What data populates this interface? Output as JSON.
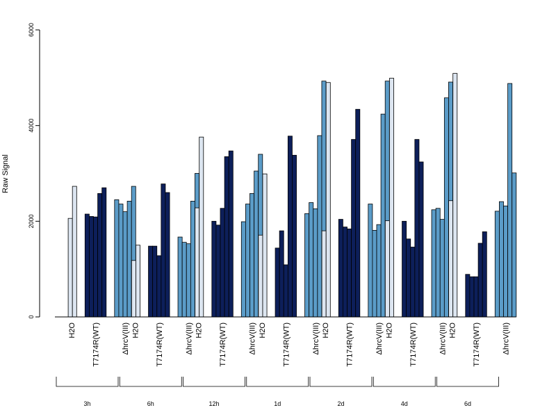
{
  "chart_data": {
    "type": "bar",
    "ylabel": "Raw Signal",
    "ylim": [
      0,
      6000
    ],
    "yticks": [
      0,
      2000,
      4000,
      6000
    ],
    "grid": false,
    "legend": "none",
    "categories": [
      "H2O",
      "T7174R(WT)",
      "ΔhrcV(III)"
    ],
    "groups": [
      {
        "label": "3h",
        "series": [
          [
            0,
            2060,
            2730
          ],
          [
            2150,
            2100,
            2090,
            2580,
            2700
          ],
          [
            2450,
            2360,
            2200,
            2420,
            2730
          ]
        ]
      },
      {
        "label": "6h",
        "series": [
          [
            0,
            1180,
            1500
          ],
          [
            1480,
            1480,
            1280,
            2780,
            2600
          ],
          [
            1670,
            1560,
            1530,
            2420,
            3000
          ]
        ]
      },
      {
        "label": "12h",
        "series": [
          [
            0,
            2280,
            3760
          ],
          [
            2000,
            1920,
            2270,
            3350,
            3470
          ],
          [
            1990,
            2360,
            2580,
            3050,
            3400
          ]
        ]
      },
      {
        "label": "1d",
        "series": [
          [
            0,
            1710,
            2990
          ],
          [
            1440,
            1800,
            1090,
            3780,
            3380
          ],
          [
            2160,
            2390,
            2260,
            3790,
            4930
          ]
        ]
      },
      {
        "label": "2d",
        "series": [
          [
            0,
            1800,
            4900
          ],
          [
            2040,
            1880,
            1840,
            3710,
            4340
          ],
          [
            2360,
            1810,
            1930,
            4240,
            4930
          ]
        ]
      },
      {
        "label": "4d",
        "series": [
          [
            0,
            2010,
            4990
          ],
          [
            2000,
            1630,
            1460,
            3710,
            3240
          ],
          [
            2240,
            2270,
            2040,
            4580,
            4910
          ]
        ]
      },
      {
        "label": "6d",
        "series": [
          [
            0,
            2430,
            5090
          ],
          [
            890,
            840,
            840,
            1540,
            1780
          ],
          [
            2210,
            2410,
            2320,
            4880,
            3010
          ]
        ]
      }
    ]
  },
  "colors": {
    "H2O": "#dde6f1",
    "T7174R(WT)": "#0d1f5a",
    "ΔhrcV(III)": "#5b9cc8",
    "axis": "#000000"
  }
}
